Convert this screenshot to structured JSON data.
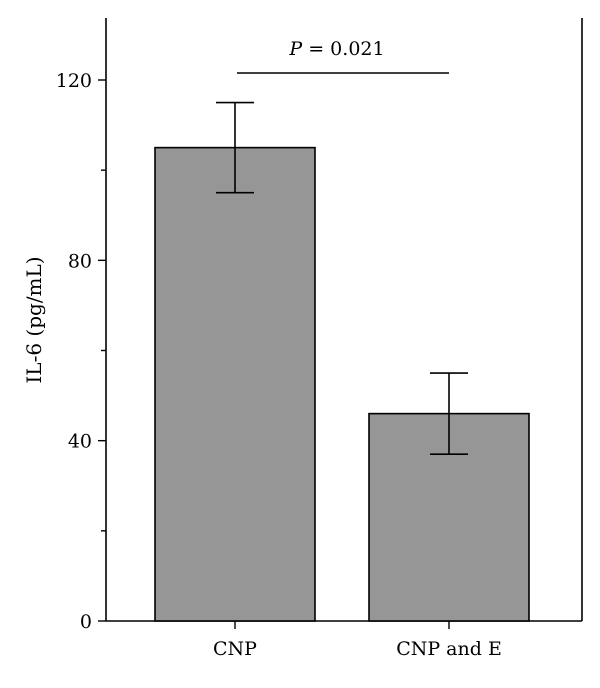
{
  "chart_data": {
    "type": "bar",
    "title": "",
    "xlabel": "",
    "ylabel": "IL-6 (pg/mL)",
    "ylim": [
      0,
      120
    ],
    "yticks_major": [
      0,
      40,
      80,
      120
    ],
    "yticks_minor": [
      20,
      60,
      100
    ],
    "categories": [
      "CNP",
      "CNP and E"
    ],
    "values": [
      105,
      46
    ],
    "error": [
      10,
      9
    ],
    "bar_color": "#969696",
    "significance": {
      "label_p": "P",
      "label_rest": " = 0.021",
      "between": [
        0,
        1
      ]
    },
    "grid": false,
    "legend": "none"
  }
}
